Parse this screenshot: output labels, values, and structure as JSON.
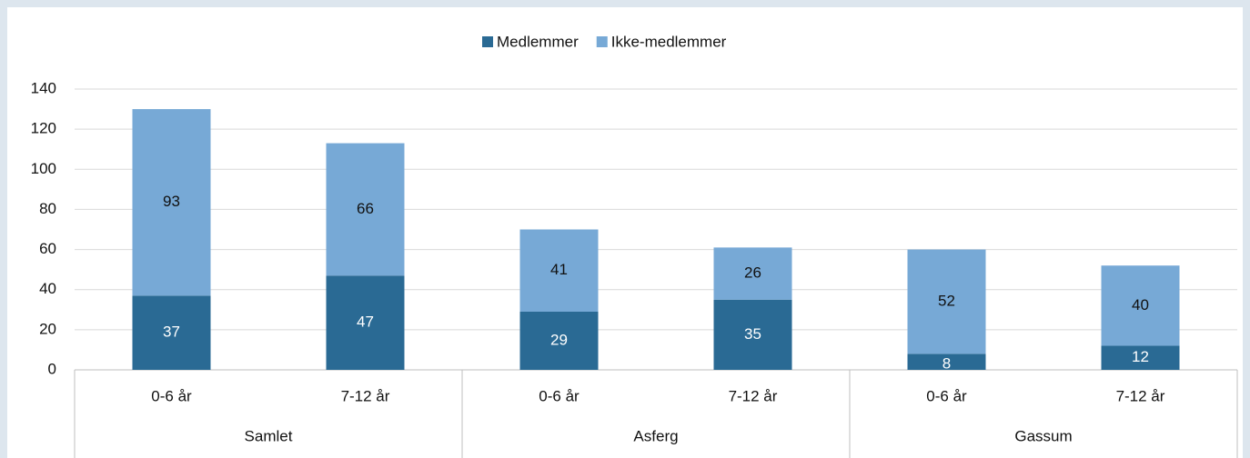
{
  "chart_data": {
    "type": "stacked_bar",
    "categories": [
      "0-6 år",
      "7-12 år",
      "0-6 år",
      "7-12 år",
      "0-6 år",
      "7-12 år"
    ],
    "groups": [
      "Samlet",
      "Asferg",
      "Gassum"
    ],
    "series": [
      {
        "name": "Medlemmer",
        "color": "#2a6a94",
        "label_color": "#ffffff",
        "values": [
          37,
          47,
          29,
          35,
          8,
          12
        ]
      },
      {
        "name": "Ikke-medlemmer",
        "color": "#77a9d6",
        "label_color": "#111111",
        "values": [
          93,
          66,
          41,
          26,
          52,
          40
        ]
      }
    ],
    "ylim": [
      0,
      140
    ],
    "yticks": [
      0,
      20,
      40,
      60,
      80,
      100,
      120,
      140
    ],
    "grid": true,
    "legend": "top"
  }
}
